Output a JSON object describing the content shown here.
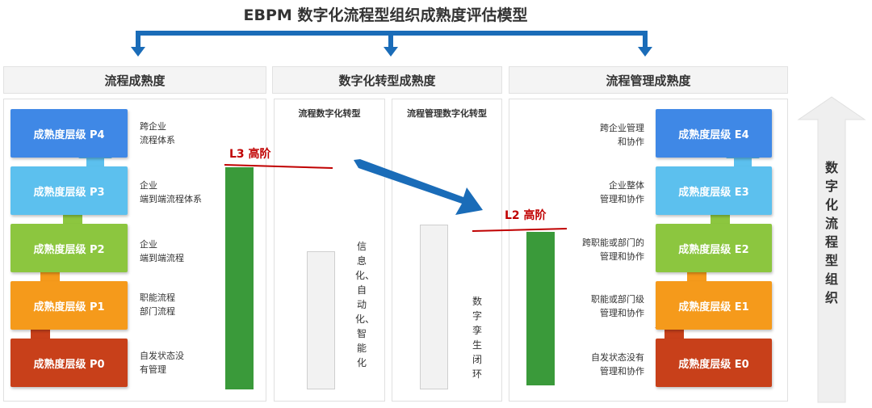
{
  "title": "EBPM 数字化流程型组织成熟度评估模型",
  "columns": {
    "left": "流程成熟度",
    "middle": "数字化转型成熟度",
    "right": "流程管理成熟度"
  },
  "sub_columns": {
    "a": "流程数字化转型",
    "b": "流程管理数字化转型"
  },
  "left_levels": [
    {
      "label": "成熟度层级 P4",
      "desc": [
        "跨企业",
        "流程体系"
      ],
      "color": "#3f88e6"
    },
    {
      "label": "成熟度层级 P3",
      "desc": [
        "企业",
        "端到端流程体系"
      ],
      "color": "#5cc0ee"
    },
    {
      "label": "成熟度层级 P2",
      "desc": [
        "企业",
        "端到端流程"
      ],
      "color": "#8cc63f"
    },
    {
      "label": "成熟度层级 P1",
      "desc": [
        "职能流程",
        "部门流程"
      ],
      "color": "#f59a1b"
    },
    {
      "label": "成熟度层级 P0",
      "desc": [
        "自发状态没",
        "有管理"
      ],
      "color": "#c8401a"
    }
  ],
  "right_levels": [
    {
      "label": "成熟度层级 E4",
      "desc": [
        "跨企业管理",
        "和协作"
      ],
      "color": "#3f88e6"
    },
    {
      "label": "成熟度层级 E3",
      "desc": [
        "企业整体",
        "管理和协作"
      ],
      "color": "#5cc0ee"
    },
    {
      "label": "成熟度层级 E2",
      "desc": [
        "跨职能或部门的",
        "管理和协作"
      ],
      "color": "#8cc63f"
    },
    {
      "label": "成熟度层级 E1",
      "desc": [
        "职能或部门级",
        "管理和协作"
      ],
      "color": "#f59a1b"
    },
    {
      "label": "成熟度层级 E0",
      "desc": [
        "自发状态没有",
        "管理和协作"
      ],
      "color": "#c8401a"
    }
  ],
  "level_tags": {
    "l3": "L3 高阶",
    "l2": "L2 高阶"
  },
  "vertical_texts": {
    "a": "信息化、自动化、智能化",
    "b": "数字孪生闭环"
  },
  "side_label": "数字化流程型组织",
  "colors": {
    "bracket_blue": "#1a6cb8",
    "bar_green": "#3a9a3a",
    "tag_red": "#c00000"
  }
}
